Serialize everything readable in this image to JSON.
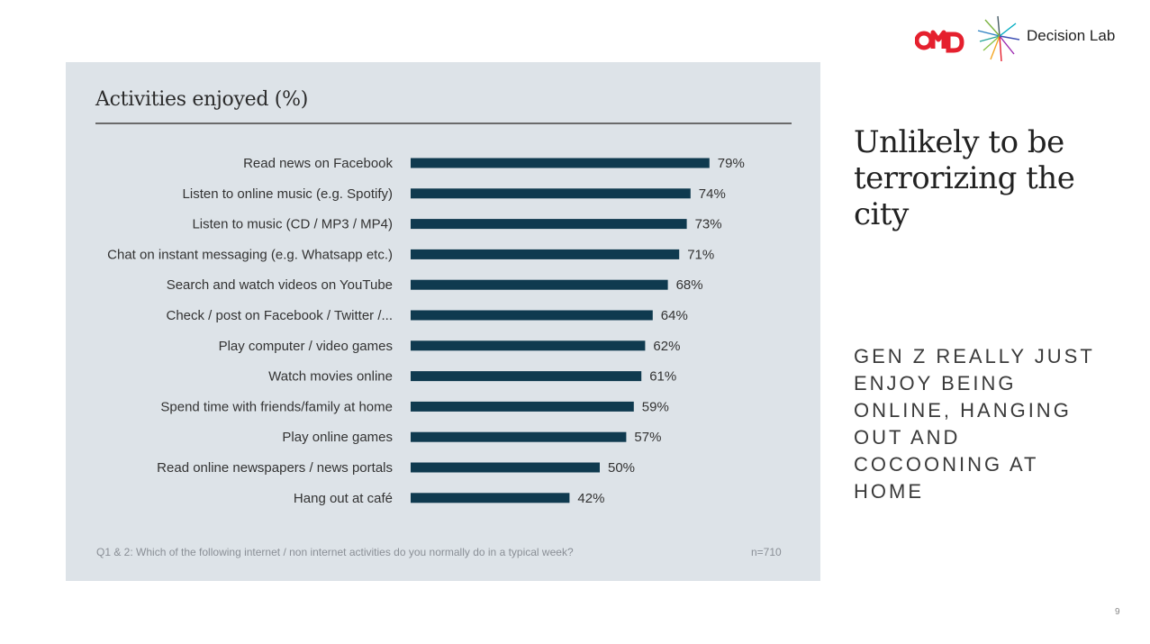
{
  "chart_title": "Activities enjoyed (%)",
  "footnote": "Q1 & 2: Which of the following internet / non internet activities do you normally do in a typical week?",
  "sample_size": "n=710",
  "headline": "Unlikely to be terrorizing the city",
  "subline": "GEN Z REALLY JUST\nENJOY BEING\nONLINE, HANGING\nOUT AND\nCOCOONING AT\nHOME",
  "page_number": "9",
  "logos": {
    "omd_text": "OMD",
    "decision_lab_text": "Decision Lab"
  },
  "colors": {
    "bar": "#0f3a4f",
    "panel": "#dde3e8",
    "omd_red": "#e5202e"
  },
  "chart_data": {
    "type": "bar",
    "orientation": "horizontal",
    "title": "Activities enjoyed (%)",
    "xlabel": "",
    "ylabel": "",
    "categories": [
      "Read news on Facebook",
      "Listen to online music (e.g. Spotify)",
      "Listen to music (CD / MP3 / MP4)",
      "Chat on instant messaging (e.g. Whatsapp etc.)",
      "Search and watch videos on YouTube",
      "Check / post on Facebook / Twitter /...",
      "Play computer / video games",
      "Watch movies online",
      "Spend time with friends/family at home",
      "Play online games",
      "Read online newspapers / news portals",
      "Hang out at café"
    ],
    "values": [
      79,
      74,
      73,
      71,
      68,
      64,
      62,
      61,
      59,
      57,
      50,
      42
    ],
    "value_labels": [
      "79%",
      "74%",
      "73%",
      "71%",
      "68%",
      "64%",
      "62%",
      "61%",
      "59%",
      "57%",
      "50%",
      "42%"
    ],
    "xlim": [
      0,
      100
    ],
    "grid": false,
    "legend": "none"
  }
}
